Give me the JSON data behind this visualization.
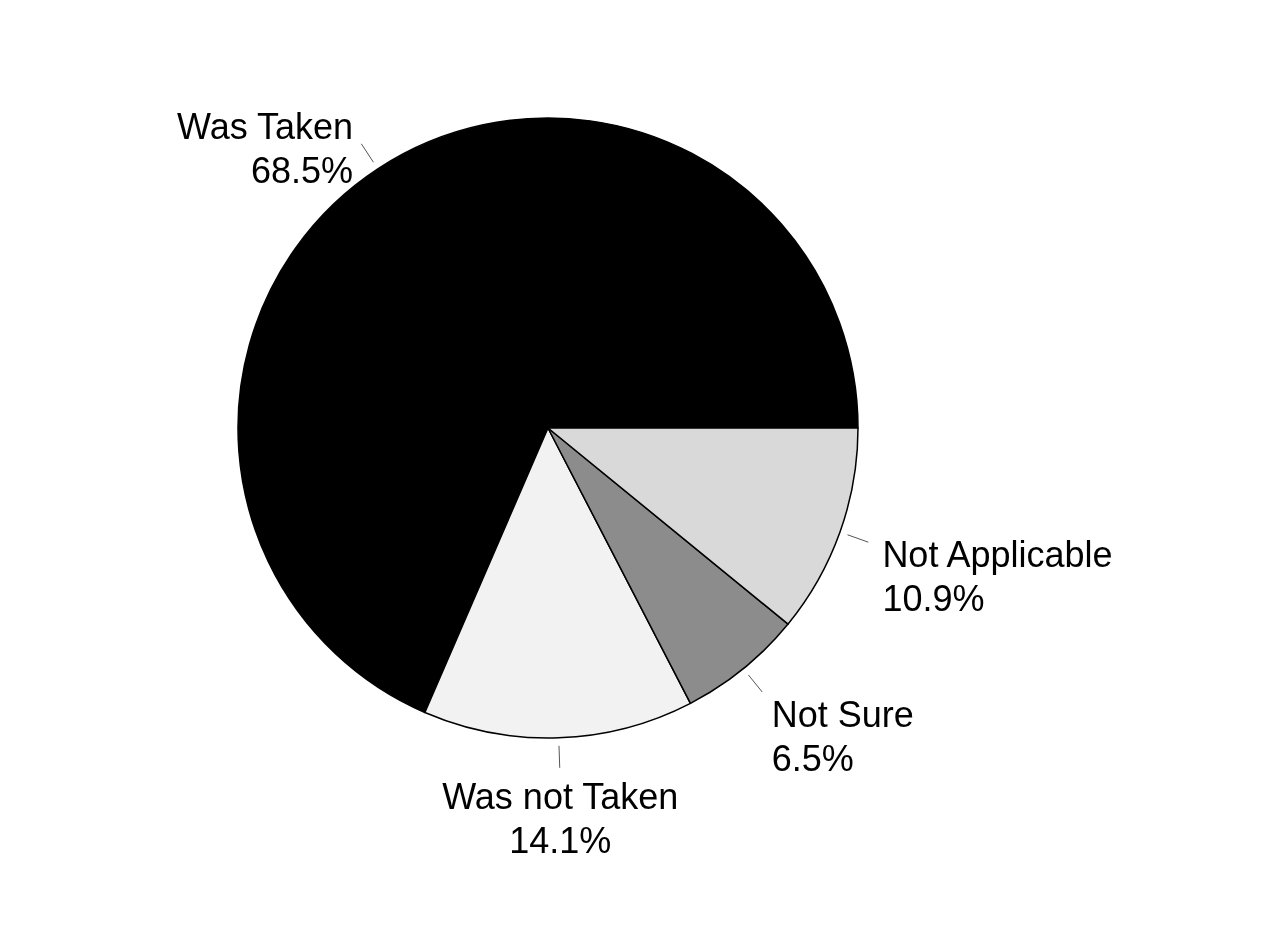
{
  "chart_data": {
    "type": "pie",
    "categories": [
      "Was Taken",
      "Was not Taken",
      "Not Sure",
      "Not Applicable"
    ],
    "values": [
      68.5,
      14.1,
      6.5,
      10.9
    ],
    "colors": [
      "#000000",
      "#f2f2f2",
      "#8c8c8c",
      "#d9d9d9"
    ],
    "value_labels": [
      "68.5%",
      "14.1%",
      "6.5%",
      "10.9%"
    ]
  }
}
